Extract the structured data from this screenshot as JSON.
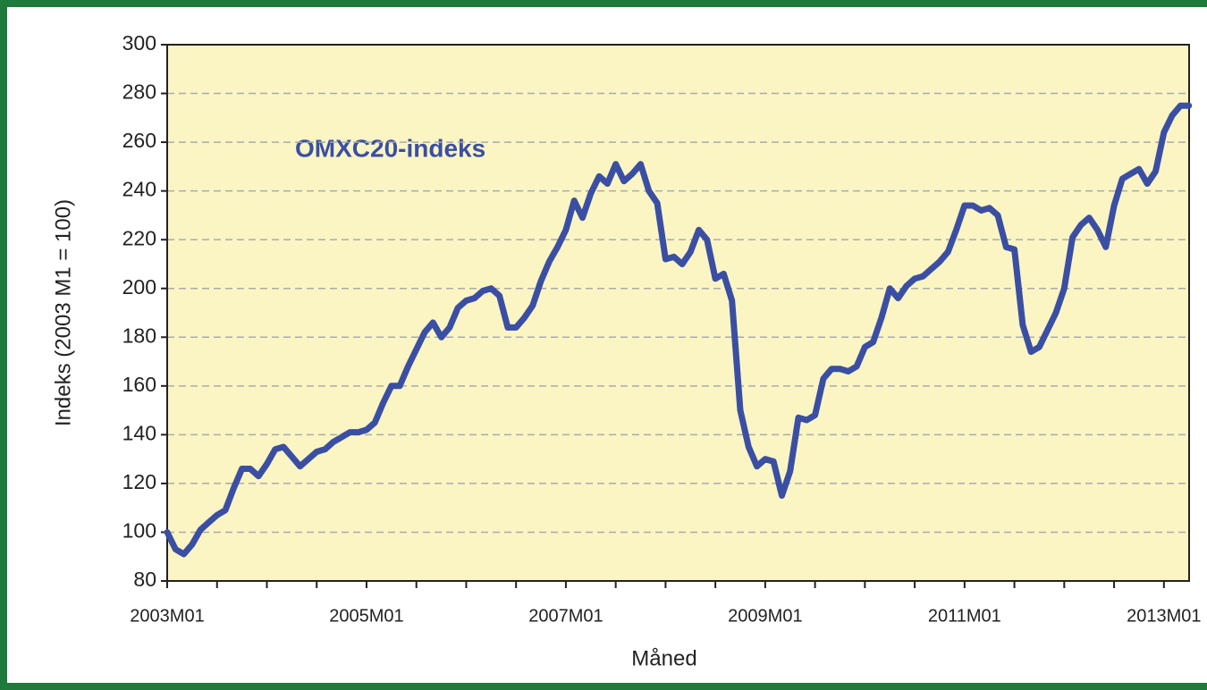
{
  "chart_data": {
    "type": "line",
    "annotation": "OMXC20-indeks",
    "x_label": "Måned",
    "y_label": "Indeks (2003 M1 = 100)",
    "categories": [
      "2003M01",
      null,
      null,
      null,
      null,
      null,
      null,
      null,
      null,
      null,
      null,
      null,
      null,
      null,
      null,
      null,
      null,
      null,
      null,
      null,
      null,
      null,
      null,
      null,
      "2005M01",
      null,
      null,
      null,
      null,
      null,
      null,
      null,
      null,
      null,
      null,
      null,
      null,
      null,
      null,
      null,
      null,
      null,
      null,
      null,
      null,
      null,
      null,
      null,
      "2007M01",
      null,
      null,
      null,
      null,
      null,
      null,
      null,
      null,
      null,
      null,
      null,
      null,
      null,
      null,
      null,
      null,
      null,
      null,
      null,
      null,
      null,
      null,
      null,
      "2009M01",
      null,
      null,
      null,
      null,
      null,
      null,
      null,
      null,
      null,
      null,
      null,
      null,
      null,
      null,
      null,
      null,
      null,
      null,
      null,
      null,
      null,
      null,
      null,
      "2011M01",
      null,
      null,
      null,
      null,
      null,
      null,
      null,
      null,
      null,
      null,
      null,
      null,
      null,
      null,
      null,
      null,
      null,
      null,
      null,
      null,
      null,
      null,
      null,
      "2013M01",
      null,
      null,
      null
    ],
    "series": [
      {
        "name": "OMXC20-indeks",
        "color": "#3a4fa3",
        "values": [
          100,
          93,
          91,
          95,
          101,
          104,
          107,
          109,
          118,
          126,
          126,
          123,
          128,
          134,
          135,
          131,
          127,
          130,
          133,
          134,
          137,
          139,
          141,
          141,
          142,
          145,
          153,
          160,
          160,
          168,
          175,
          182,
          186,
          180,
          184,
          192,
          195,
          196,
          199,
          200,
          197,
          184,
          184,
          188,
          193,
          203,
          211,
          217,
          224,
          236,
          229,
          239,
          246,
          243,
          251,
          244,
          247,
          251,
          240,
          235,
          212,
          213,
          210,
          215,
          224,
          220,
          204,
          206,
          195,
          150,
          135,
          127,
          130,
          129,
          115,
          125,
          147,
          146,
          148,
          163,
          167,
          167,
          166,
          168,
          176,
          178,
          188,
          200,
          196,
          201,
          204,
          205,
          208,
          211,
          215,
          224,
          234,
          234,
          232,
          233,
          230,
          217,
          216,
          185,
          174,
          176,
          183,
          190,
          200,
          221,
          226,
          229,
          224,
          217,
          234,
          245,
          247,
          249,
          243,
          248,
          264,
          271,
          275,
          275
        ]
      }
    ],
    "ylim": [
      80,
      300
    ],
    "yticks": [
      80,
      100,
      120,
      140,
      160,
      180,
      200,
      220,
      240,
      260,
      280,
      300
    ],
    "grid": true,
    "plot_background": "#fbf5c4",
    "border_color": "#1f7a3c"
  }
}
